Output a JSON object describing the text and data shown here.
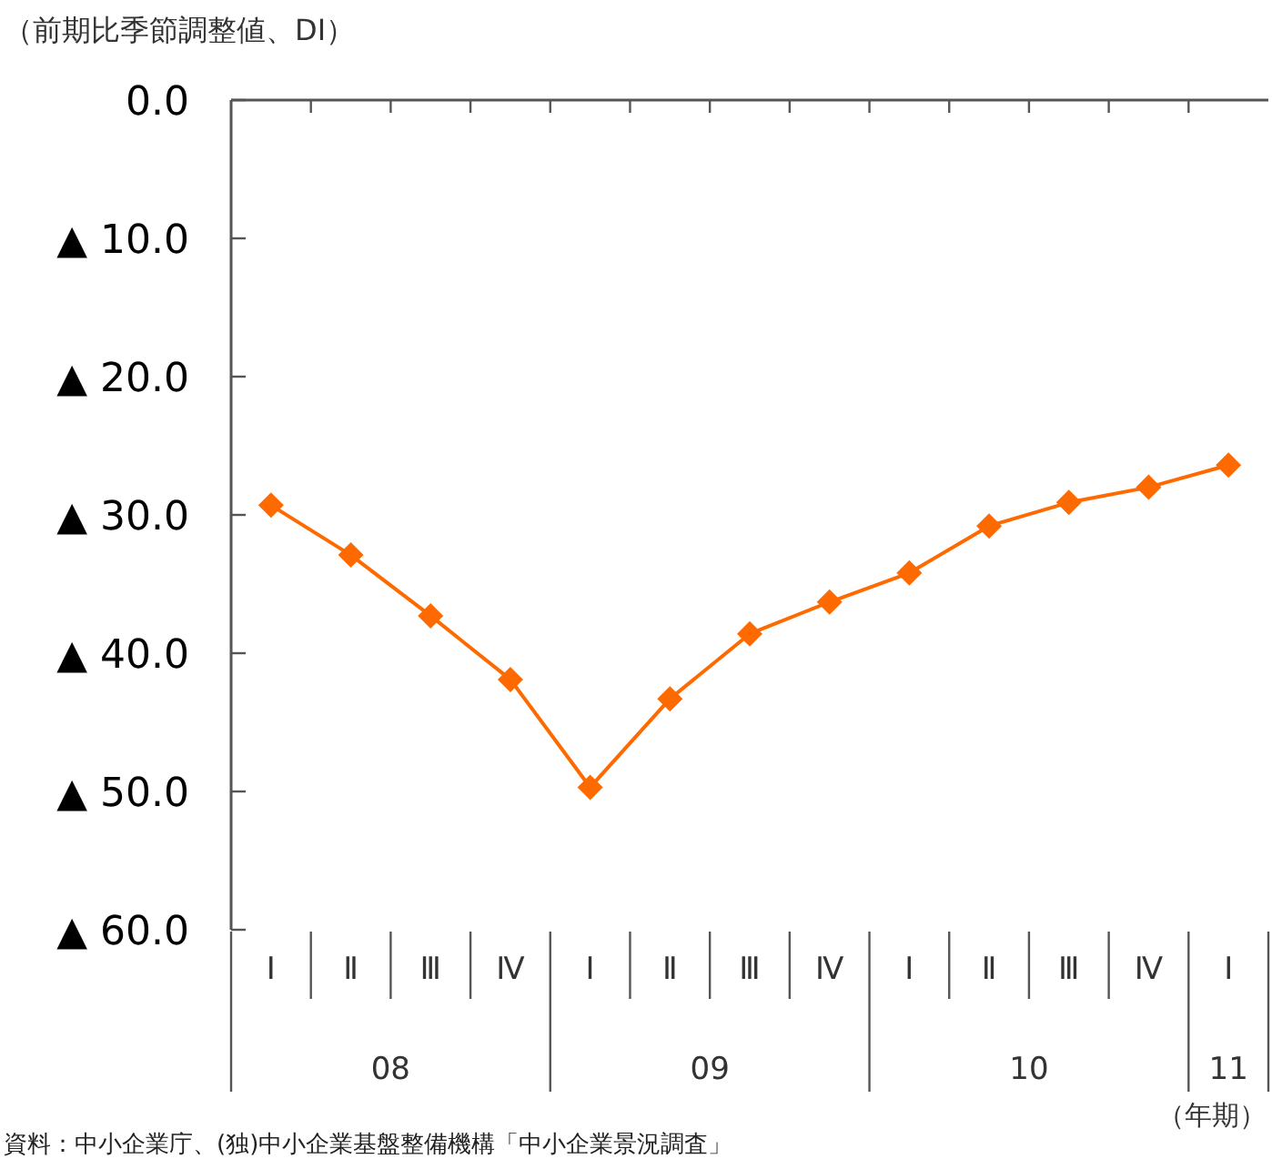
{
  "chart_data": {
    "type": "line",
    "ylabel": "（前期比季節調整値、DI）",
    "xlabel": "（年期）",
    "categories": [
      "Ⅰ",
      "Ⅱ",
      "Ⅲ",
      "Ⅳ",
      "Ⅰ",
      "Ⅱ",
      "Ⅲ",
      "Ⅳ",
      "Ⅰ",
      "Ⅱ",
      "Ⅲ",
      "Ⅳ",
      "Ⅰ"
    ],
    "series": [
      {
        "color": "#ff6a00",
        "values": [
          -29.3,
          -32.9,
          -37.3,
          -41.9,
          -49.7,
          -43.3,
          -38.6,
          -36.3,
          -34.2,
          -30.8,
          -29.1,
          -28.0,
          -26.4
        ]
      }
    ],
    "ylim": [
      -60,
      0
    ],
    "yticks": [
      {
        "value": 0,
        "label": "0.0"
      },
      {
        "value": -10,
        "label": "▲ 10.0"
      },
      {
        "value": -20,
        "label": "▲ 20.0"
      },
      {
        "value": -30,
        "label": "▲ 30.0"
      },
      {
        "value": -40,
        "label": "▲ 40.0"
      },
      {
        "value": -50,
        "label": "▲ 50.0"
      },
      {
        "value": -60,
        "label": "▲ 60.0"
      }
    ],
    "marker": "diamond",
    "line_style": "solid",
    "annotations": [
      "08",
      "09",
      "10",
      "11",
      "資料：中小企業庁、(独)中小企業基盤整備機構「中小企業景況調査」"
    ]
  }
}
